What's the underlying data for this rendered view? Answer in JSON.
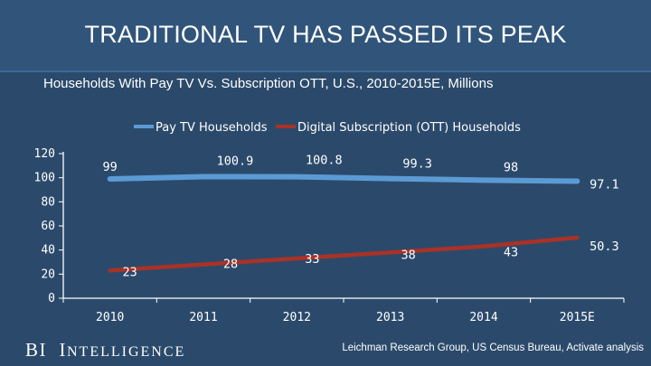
{
  "header": {
    "title": "TRADITIONAL TV HAS PASSED ITS PEAK",
    "subtitle": "Households With Pay TV Vs. Subscription OTT, U.S., 2010-2015E, Millions"
  },
  "footer": {
    "brand_bi": "BI",
    "brand_i": "I",
    "brand_rest": "NTELLIGENCE",
    "source": "Leichman Research Group, US Census Bureau, Activate analysis"
  },
  "colors": {
    "background": "#2b4a6b",
    "pay_tv": "#5b9bd5",
    "ott": "#a93226",
    "axis": "#ffffff"
  },
  "chart_data": {
    "type": "line",
    "title": "Households With Pay TV Vs. Subscription OTT, U.S., 2010-2015E, Millions",
    "xlabel": "",
    "ylabel": "",
    "categories": [
      "2010",
      "2011",
      "2012",
      "2013",
      "2014",
      "2015E"
    ],
    "ylim": [
      0,
      120
    ],
    "yticks": [
      0,
      20,
      40,
      60,
      80,
      100,
      120
    ],
    "legend_position": "top-center",
    "grid": false,
    "series": [
      {
        "name": "Pay TV Households",
        "values": [
          99,
          100.9,
          100.8,
          99.3,
          98,
          97.1
        ],
        "labels": [
          "99",
          "100.9",
          "100.8",
          "99.3",
          "98",
          "97.1"
        ]
      },
      {
        "name": "Digital Subscription (OTT) Households",
        "values": [
          23,
          28,
          33,
          38,
          43,
          50.3
        ],
        "labels": [
          "23",
          "28",
          "33",
          "38",
          "43",
          "50.3"
        ]
      }
    ]
  }
}
